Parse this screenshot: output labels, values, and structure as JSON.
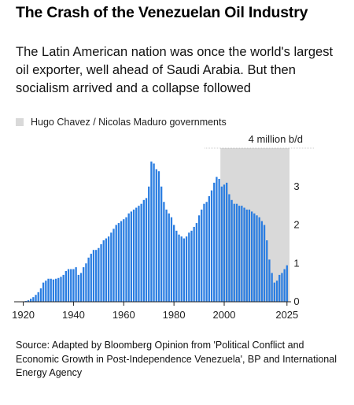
{
  "header": {
    "title": "The Crash of the Venezuelan Oil Industry",
    "subtitle": "The Latin American nation was once the world's largest oil exporter, well ahead of Saudi Arabia. But then socialism arrived and a collapse followed"
  },
  "legend": {
    "label": "Hugo Chavez / Nicolas Maduro governments",
    "color": "#d9d9d9"
  },
  "source": "Source: Adapted by Bloomberg Opinion from 'Political Conflict and Economic Growth in Post-Independence Venezuela', BP and International Energy Agency",
  "chart_data": {
    "type": "bar",
    "title": "The Crash of the Venezuelan Oil Industry",
    "unit_label": "4 million b/d",
    "bar_color": "#2a7de1",
    "shade_color": "#d9d9d9",
    "shaded_range": [
      1999,
      2025
    ],
    "xlim": [
      1917,
      2026
    ],
    "ylim": [
      0,
      4
    ],
    "x_ticks": [
      {
        "value": 1920,
        "label": "1920"
      },
      {
        "value": 1940,
        "label": "1940"
      },
      {
        "value": 1960,
        "label": "1960"
      },
      {
        "value": 1980,
        "label": "1980"
      },
      {
        "value": 2000,
        "label": "2000"
      },
      {
        "value": 2025,
        "label": "2025"
      }
    ],
    "y_ticks": [
      {
        "value": 0,
        "label": "0"
      },
      {
        "value": 1,
        "label": "1"
      },
      {
        "value": 2,
        "label": "2"
      },
      {
        "value": 3,
        "label": "3"
      }
    ],
    "x": [
      1920,
      1921,
      1922,
      1923,
      1924,
      1925,
      1926,
      1927,
      1928,
      1929,
      1930,
      1931,
      1932,
      1933,
      1934,
      1935,
      1936,
      1937,
      1938,
      1939,
      1940,
      1941,
      1942,
      1943,
      1944,
      1945,
      1946,
      1947,
      1948,
      1949,
      1950,
      1951,
      1952,
      1953,
      1954,
      1955,
      1956,
      1957,
      1958,
      1959,
      1960,
      1961,
      1962,
      1963,
      1964,
      1965,
      1966,
      1967,
      1968,
      1969,
      1970,
      1971,
      1972,
      1973,
      1974,
      1975,
      1976,
      1977,
      1978,
      1979,
      1980,
      1981,
      1982,
      1983,
      1984,
      1985,
      1986,
      1987,
      1988,
      1989,
      1990,
      1991,
      1992,
      1993,
      1994,
      1995,
      1996,
      1997,
      1998,
      1999,
      2000,
      2001,
      2002,
      2003,
      2004,
      2005,
      2006,
      2007,
      2008,
      2009,
      2010,
      2011,
      2012,
      2013,
      2014,
      2015,
      2016,
      2017,
      2018,
      2019,
      2020,
      2021,
      2022,
      2023,
      2024,
      2025
    ],
    "values": [
      0.01,
      0.02,
      0.04,
      0.08,
      0.12,
      0.18,
      0.25,
      0.35,
      0.5,
      0.55,
      0.6,
      0.6,
      0.58,
      0.6,
      0.62,
      0.65,
      0.7,
      0.8,
      0.85,
      0.85,
      0.85,
      0.9,
      0.7,
      0.75,
      0.9,
      1.0,
      1.15,
      1.25,
      1.35,
      1.35,
      1.4,
      1.5,
      1.6,
      1.65,
      1.7,
      1.8,
      1.9,
      2.0,
      2.05,
      2.1,
      2.15,
      2.2,
      2.3,
      2.35,
      2.4,
      2.45,
      2.5,
      2.55,
      2.65,
      2.7,
      3.0,
      3.65,
      3.6,
      3.45,
      3.4,
      3.0,
      2.6,
      2.4,
      2.3,
      2.2,
      2.0,
      1.85,
      1.75,
      1.7,
      1.65,
      1.7,
      1.8,
      1.85,
      1.95,
      2.05,
      2.25,
      2.4,
      2.55,
      2.6,
      2.75,
      2.9,
      3.1,
      3.25,
      3.2,
      3.0,
      3.05,
      3.1,
      2.8,
      2.65,
      2.55,
      2.55,
      2.5,
      2.5,
      2.45,
      2.4,
      2.4,
      2.35,
      2.3,
      2.25,
      2.2,
      2.1,
      2.0,
      1.6,
      1.1,
      0.75,
      0.5,
      0.55,
      0.7,
      0.75,
      0.85,
      0.95
    ]
  }
}
